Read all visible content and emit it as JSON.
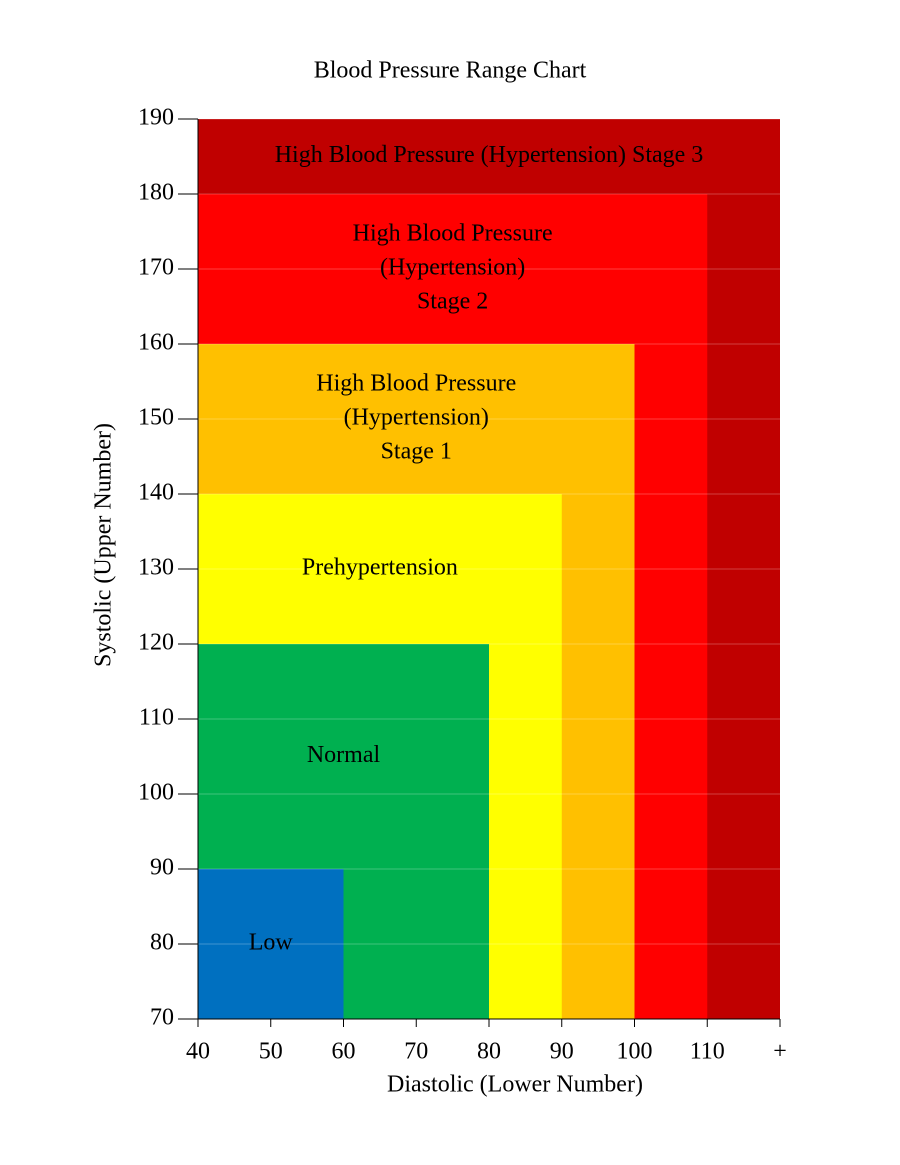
{
  "chart_data": {
    "type": "nested-range",
    "title": "Blood Pressure Range Chart",
    "x_label": "Diastolic (Lower Number)",
    "y_label": "Systolic (Upper Number)",
    "xlim": [
      40,
      120
    ],
    "ylim": [
      70,
      190
    ],
    "xticks": [
      40,
      50,
      60,
      70,
      80,
      90,
      100,
      110,
      {
        "value": 120,
        "label": "+"
      }
    ],
    "yticks": [
      70,
      80,
      90,
      100,
      110,
      120,
      130,
      140,
      150,
      160,
      170,
      180,
      190
    ],
    "grid": true,
    "regions": [
      {
        "name": [
          "Low"
        ],
        "color": "#0070c0",
        "x": 60,
        "y": 90
      },
      {
        "name": [
          "Normal"
        ],
        "color": "#00b050",
        "x": 80,
        "y": 120
      },
      {
        "name": [
          "Prehypertension"
        ],
        "color": "#ffff00",
        "x": 90,
        "y": 140
      },
      {
        "name": [
          "High Blood Pressure",
          "(Hypertension)",
          "Stage 1"
        ],
        "color": "#ffc000",
        "x": 100,
        "y": 160
      },
      {
        "name": [
          "High Blood Pressure",
          "(Hypertension)",
          "Stage 2"
        ],
        "color": "#ff0000",
        "x": 110,
        "y": 180
      },
      {
        "name": [
          "High Blood Pressure (Hypertension) Stage 3"
        ],
        "color": "#c00000",
        "x": 120,
        "y": 190
      }
    ]
  }
}
